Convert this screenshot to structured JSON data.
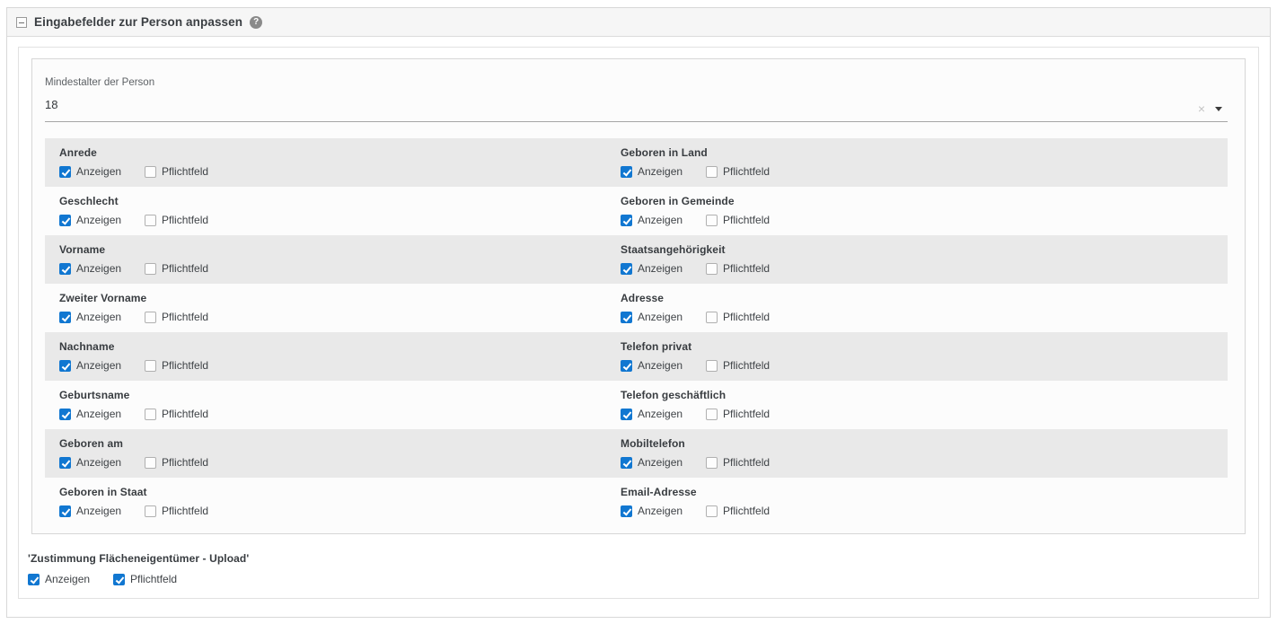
{
  "header": {
    "title": "Eingabefelder zur Person anpassen"
  },
  "min_age_field": {
    "label": "Mindestalter der Person",
    "value": "18",
    "clear_icon": "×"
  },
  "checkbox_labels": {
    "show": "Anzeigen",
    "required": "Pflichtfeld"
  },
  "rows": [
    {
      "left": {
        "label": "Anrede",
        "show": true,
        "required": false
      },
      "right": {
        "label": "Geboren in Land",
        "show": true,
        "required": false
      }
    },
    {
      "left": {
        "label": "Geschlecht",
        "show": true,
        "required": false
      },
      "right": {
        "label": "Geboren in Gemeinde",
        "show": true,
        "required": false
      }
    },
    {
      "left": {
        "label": "Vorname",
        "show": true,
        "required": false
      },
      "right": {
        "label": "Staatsangehörigkeit",
        "show": true,
        "required": false
      }
    },
    {
      "left": {
        "label": "Zweiter Vorname",
        "show": true,
        "required": false
      },
      "right": {
        "label": "Adresse",
        "show": true,
        "required": false
      }
    },
    {
      "left": {
        "label": "Nachname",
        "show": true,
        "required": false
      },
      "right": {
        "label": "Telefon privat",
        "show": true,
        "required": false
      }
    },
    {
      "left": {
        "label": "Geburtsname",
        "show": true,
        "required": false
      },
      "right": {
        "label": "Telefon geschäftlich",
        "show": true,
        "required": false
      }
    },
    {
      "left": {
        "label": "Geboren am",
        "show": true,
        "required": false
      },
      "right": {
        "label": "Mobiltelefon",
        "show": true,
        "required": false
      }
    },
    {
      "left": {
        "label": "Geboren in Staat",
        "show": true,
        "required": false
      },
      "right": {
        "label": "Email-Adresse",
        "show": true,
        "required": false
      }
    }
  ],
  "consent_field": {
    "label": "'Zustimmung Flächeneigentümer - Upload'",
    "show": true,
    "required": true
  },
  "colors": {
    "checkbox_checked": "#1177d1",
    "row_stripe": "#e9e9e9",
    "header_bg": "#f6f6f6"
  }
}
